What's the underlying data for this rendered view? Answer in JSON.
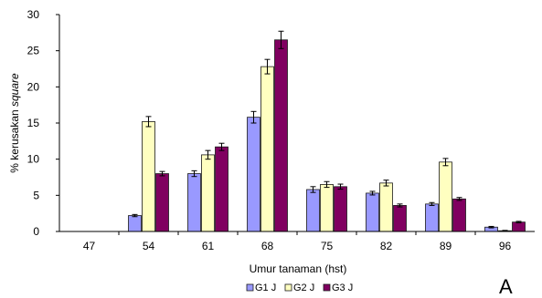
{
  "chart_data": {
    "type": "bar",
    "title": "",
    "xlabel": "Umur tanaman (hst)",
    "ylabel_prefix": "% kerusakan ",
    "ylabel_italic": "square",
    "ylim": [
      0,
      30
    ],
    "yticks": [
      0,
      5,
      10,
      15,
      20,
      25,
      30
    ],
    "categories": [
      "47",
      "54",
      "61",
      "68",
      "75",
      "82",
      "89",
      "96"
    ],
    "error_bars": true,
    "grid": false,
    "legend_position": "bottom-center",
    "series": [
      {
        "name": "G1 J",
        "color": "#9999ff",
        "values": [
          0,
          2.2,
          8.0,
          15.8,
          5.8,
          5.3,
          3.8,
          0.6
        ],
        "errors": [
          0,
          0.15,
          0.4,
          0.8,
          0.4,
          0.25,
          0.2,
          0.1
        ]
      },
      {
        "name": "G2 J",
        "color": "#ffffc0",
        "values": [
          0,
          15.2,
          10.6,
          22.8,
          6.5,
          6.7,
          9.6,
          0.1
        ],
        "errors": [
          0,
          0.7,
          0.6,
          1.0,
          0.4,
          0.4,
          0.5,
          0.05
        ]
      },
      {
        "name": "G3 J",
        "color": "#800060",
        "values": [
          0,
          8.0,
          11.7,
          26.5,
          6.2,
          3.6,
          4.5,
          1.3
        ],
        "errors": [
          0,
          0.3,
          0.5,
          1.2,
          0.35,
          0.2,
          0.2,
          0.1
        ]
      }
    ]
  },
  "panel_label": "A"
}
